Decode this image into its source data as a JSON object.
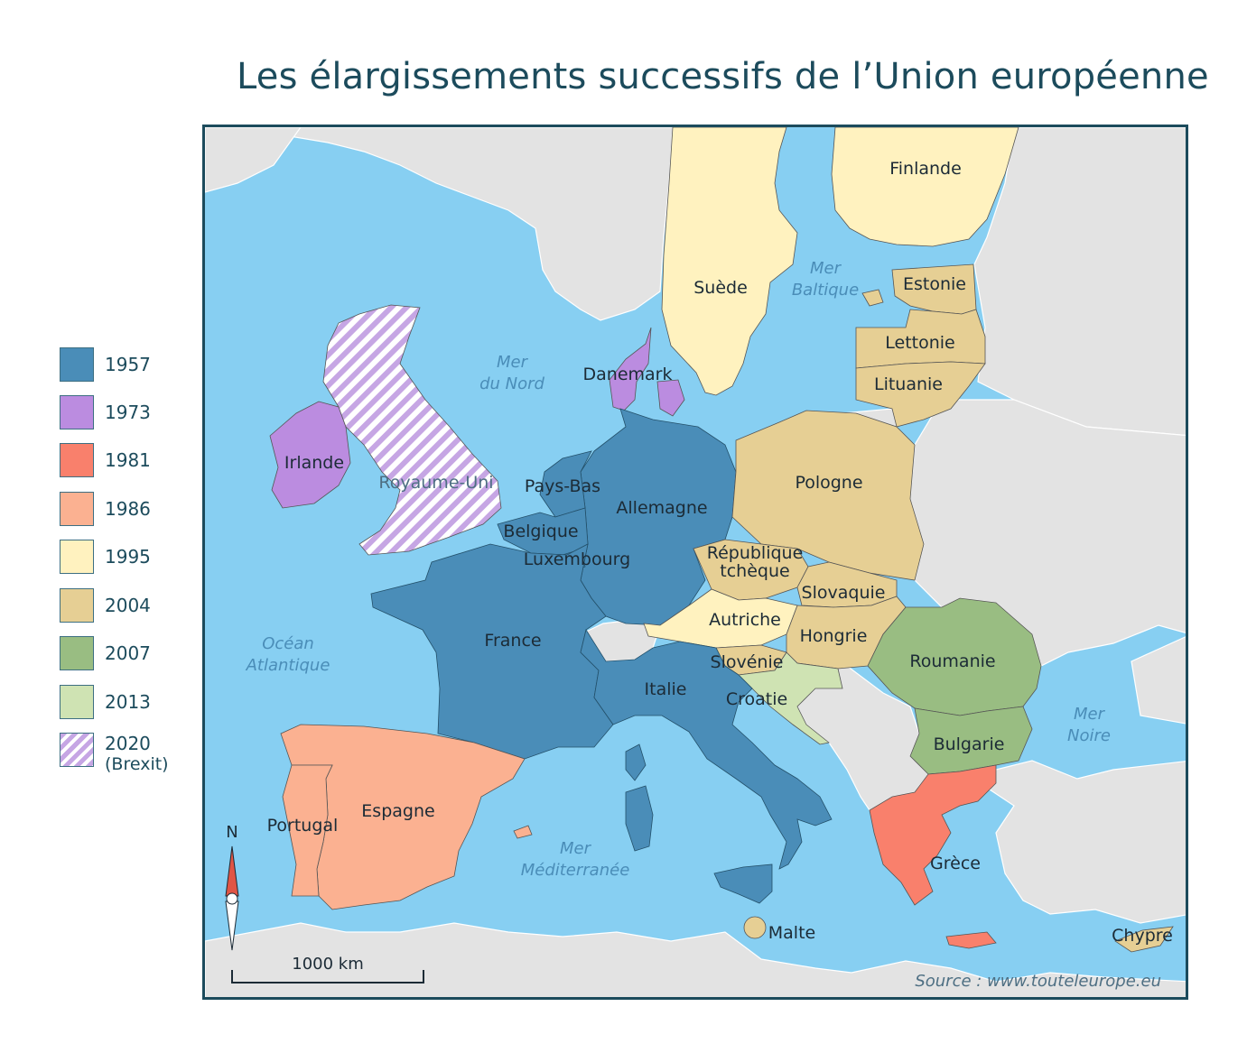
{
  "title": "Les élargissements successifs de l’Union européenne",
  "legend": [
    {
      "year": "1957",
      "color": "#4a8db8",
      "sub": ""
    },
    {
      "year": "1973",
      "color": "#bb8ce0",
      "sub": ""
    },
    {
      "year": "1981",
      "color": "#f9806c",
      "sub": ""
    },
    {
      "year": "1986",
      "color": "#fbb191",
      "sub": ""
    },
    {
      "year": "1995",
      "color": "#fff2bf",
      "sub": ""
    },
    {
      "year": "2004",
      "color": "#e6cf94",
      "sub": ""
    },
    {
      "year": "2007",
      "color": "#99bd82",
      "sub": ""
    },
    {
      "year": "2013",
      "color": "#cfe3b3",
      "sub": ""
    },
    {
      "year": "2020",
      "color": "hatch",
      "sub": "(Brexit)"
    }
  ],
  "colors": {
    "sea": "#87cff2",
    "land_other": "#e3e3e3",
    "border": "#1c4b5c"
  },
  "countries": {
    "finlande": "Finlande",
    "suede": "Suède",
    "estonie": "Estonie",
    "lettonie": "Lettonie",
    "lituanie": "Lituanie",
    "danemark": "Danemark",
    "irlande": "Irlande",
    "royaume_uni": "Royaume-Uni",
    "pays_bas": "Pays-Bas",
    "belgique": "Belgique",
    "luxembourg": "Luxembourg",
    "allemagne": "Allemagne",
    "pologne": "Pologne",
    "republique_tcheque_1": "République",
    "republique_tcheque_2": "tchèque",
    "slovaquie": "Slovaquie",
    "autriche": "Autriche",
    "hongrie": "Hongrie",
    "slovenie": "Slovénie",
    "croatie": "Croatie",
    "roumanie": "Roumanie",
    "bulgarie": "Bulgarie",
    "france": "France",
    "italie": "Italie",
    "espagne": "Espagne",
    "portugal": "Portugal",
    "grece": "Grèce",
    "malte": "Malte",
    "chypre": "Chypre"
  },
  "seas": {
    "baltique_1": "Mer",
    "baltique_2": "Baltique",
    "nord_1": "Mer",
    "nord_2": "du Nord",
    "atlantique_1": "Océan",
    "atlantique_2": "Atlantique",
    "noire_1": "Mer",
    "noire_2": "Noire",
    "med_1": "Mer",
    "med_2": "Méditerranée"
  },
  "compass_label": "N",
  "scale_label": "1000 km",
  "source": "Source : www.touteleurope.eu"
}
